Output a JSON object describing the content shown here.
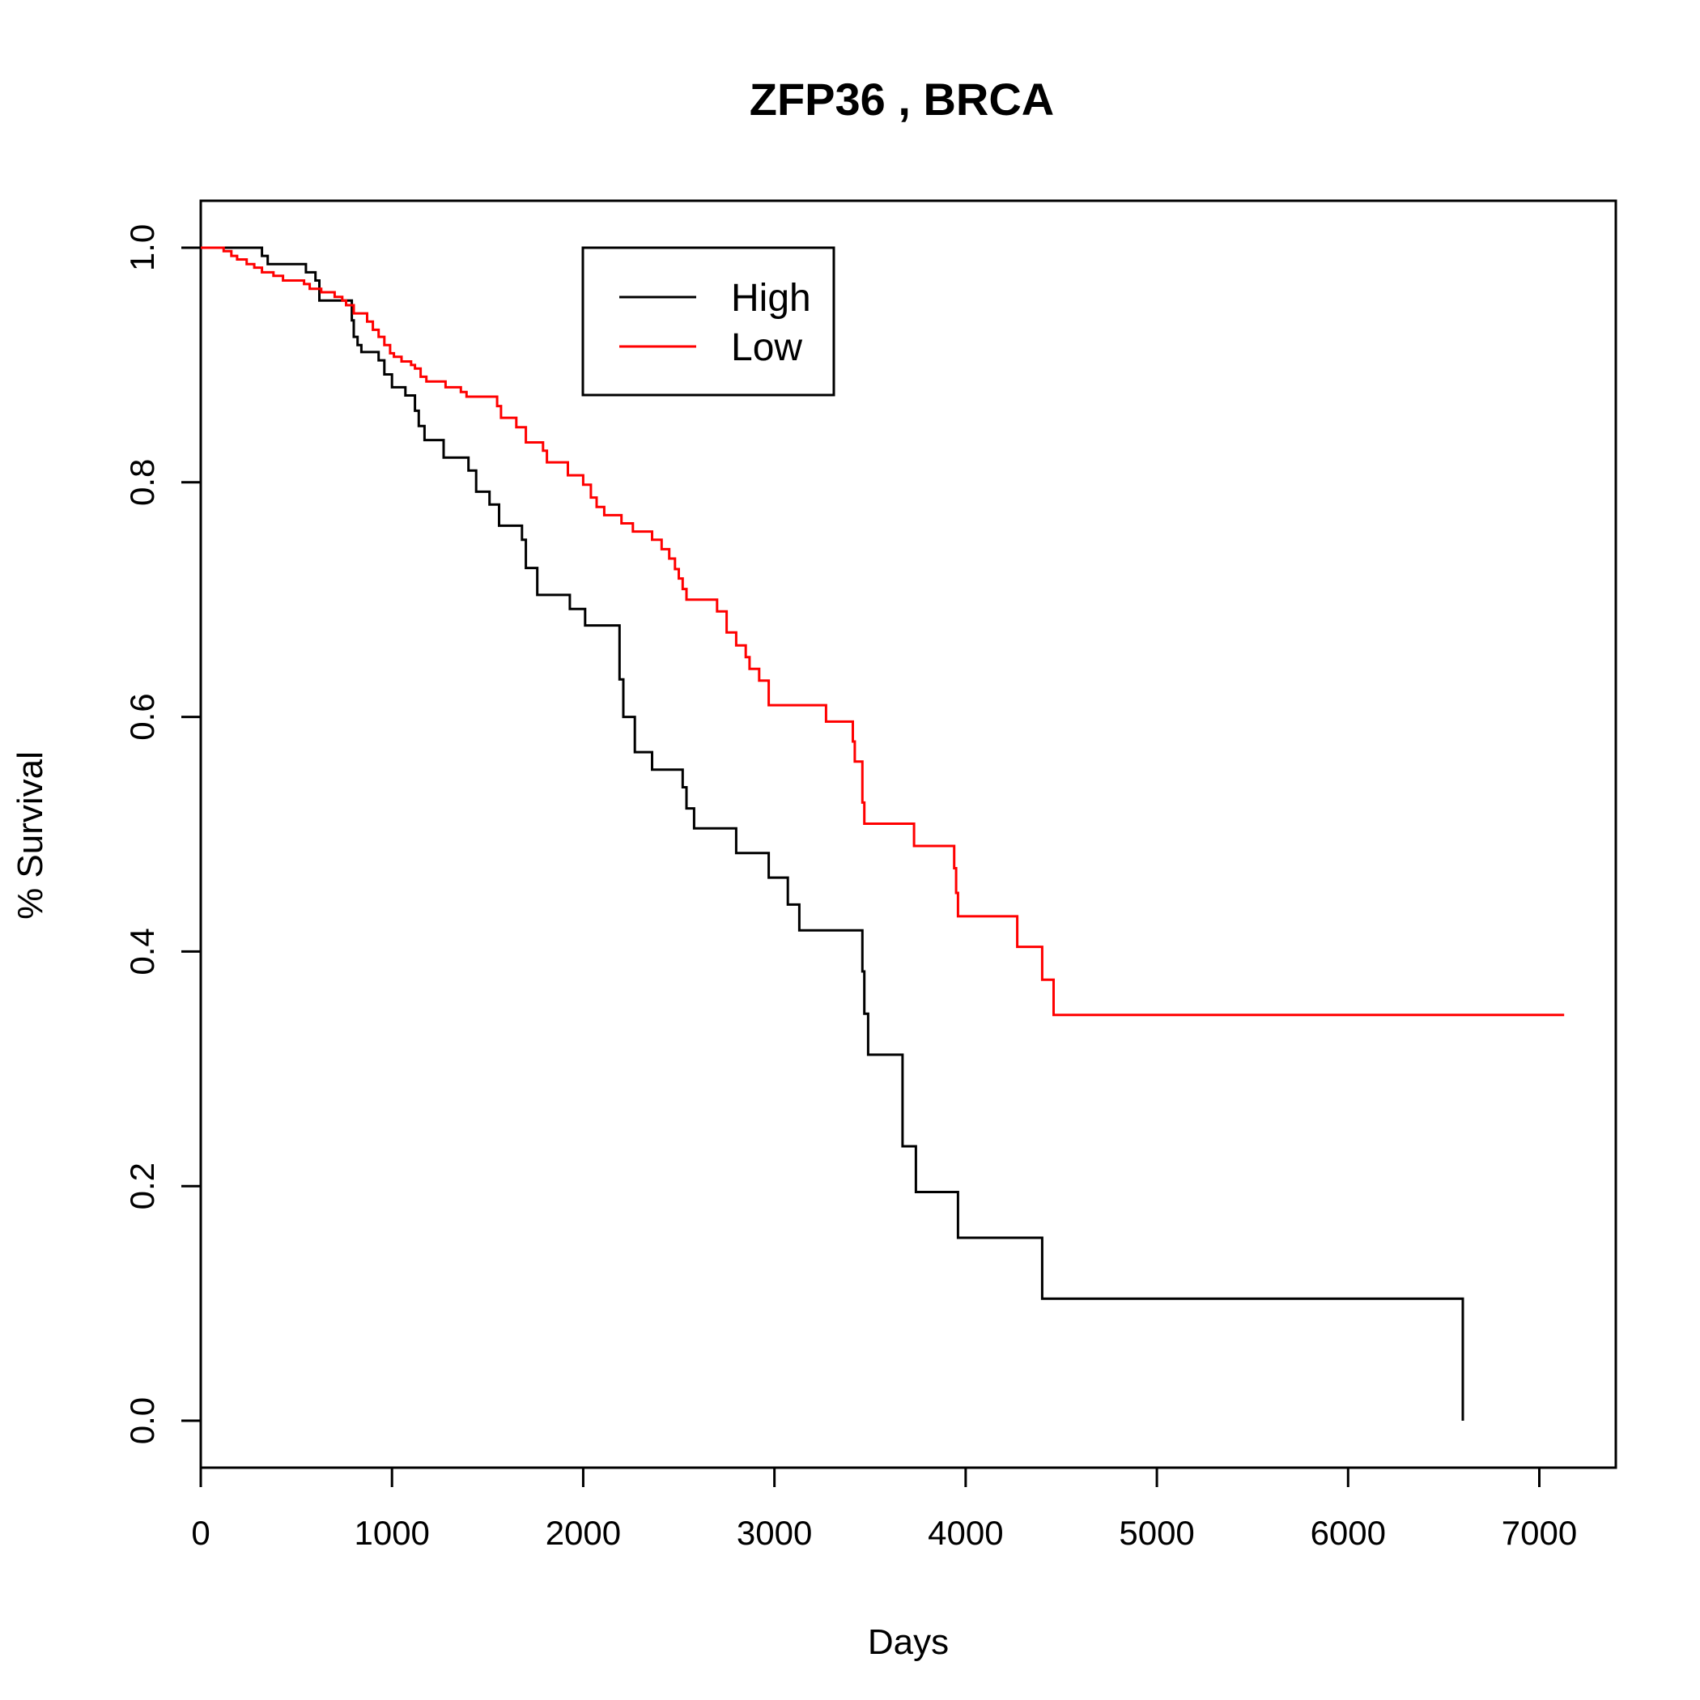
{
  "chart_data": {
    "type": "line",
    "title": "ZFP36 ,  BRCA",
    "xlabel": "Days",
    "ylabel": "% Survival",
    "xlim": [
      0,
      7400
    ],
    "ylim": [
      -0.04,
      1.04
    ],
    "x_ticks": [
      {
        "value": 0,
        "label": "0"
      },
      {
        "value": 1000,
        "label": "1000"
      },
      {
        "value": 2000,
        "label": "2000"
      },
      {
        "value": 3000,
        "label": "3000"
      },
      {
        "value": 4000,
        "label": "4000"
      },
      {
        "value": 5000,
        "label": "5000"
      },
      {
        "value": 6000,
        "label": "6000"
      },
      {
        "value": 7000,
        "label": "7000"
      }
    ],
    "y_ticks": [
      {
        "value": 0.0,
        "label": "0.0"
      },
      {
        "value": 0.2,
        "label": "0.2"
      },
      {
        "value": 0.4,
        "label": "0.4"
      },
      {
        "value": 0.6,
        "label": "0.6"
      },
      {
        "value": 0.8,
        "label": "0.8"
      },
      {
        "value": 1.0,
        "label": "1.0"
      }
    ],
    "grid": false,
    "legend_position": "top-center",
    "series": [
      {
        "name": "High",
        "color": "#000000",
        "step": true,
        "points": [
          [
            0,
            1.0
          ],
          [
            320,
            0.993
          ],
          [
            350,
            0.986
          ],
          [
            550,
            0.979
          ],
          [
            600,
            0.972
          ],
          [
            620,
            0.955
          ],
          [
            790,
            0.938
          ],
          [
            800,
            0.924
          ],
          [
            820,
            0.917
          ],
          [
            840,
            0.911
          ],
          [
            930,
            0.904
          ],
          [
            960,
            0.892
          ],
          [
            1000,
            0.881
          ],
          [
            1070,
            0.874
          ],
          [
            1120,
            0.861
          ],
          [
            1140,
            0.848
          ],
          [
            1170,
            0.836
          ],
          [
            1270,
            0.821
          ],
          [
            1400,
            0.81
          ],
          [
            1440,
            0.792
          ],
          [
            1510,
            0.781
          ],
          [
            1560,
            0.763
          ],
          [
            1680,
            0.751
          ],
          [
            1700,
            0.727
          ],
          [
            1760,
            0.704
          ],
          [
            1930,
            0.692
          ],
          [
            2010,
            0.678
          ],
          [
            2190,
            0.632
          ],
          [
            2210,
            0.6
          ],
          [
            2270,
            0.57
          ],
          [
            2360,
            0.555
          ],
          [
            2520,
            0.54
          ],
          [
            2540,
            0.522
          ],
          [
            2580,
            0.505
          ],
          [
            2800,
            0.484
          ],
          [
            2970,
            0.463
          ],
          [
            3070,
            0.44
          ],
          [
            3130,
            0.418
          ],
          [
            3460,
            0.383
          ],
          [
            3470,
            0.347
          ],
          [
            3490,
            0.312
          ],
          [
            3670,
            0.234
          ],
          [
            3740,
            0.195
          ],
          [
            3960,
            0.156
          ],
          [
            4400,
            0.104
          ],
          [
            6600,
            0.104
          ],
          [
            6600,
            0.0
          ]
        ]
      },
      {
        "name": "Low",
        "color": "#ff0000",
        "step": true,
        "points": [
          [
            0,
            1.0
          ],
          [
            120,
            0.997
          ],
          [
            160,
            0.993
          ],
          [
            190,
            0.99
          ],
          [
            240,
            0.986
          ],
          [
            280,
            0.983
          ],
          [
            320,
            0.979
          ],
          [
            380,
            0.976
          ],
          [
            430,
            0.972
          ],
          [
            540,
            0.969
          ],
          [
            570,
            0.965
          ],
          [
            630,
            0.962
          ],
          [
            700,
            0.958
          ],
          [
            740,
            0.955
          ],
          [
            760,
            0.951
          ],
          [
            800,
            0.944
          ],
          [
            870,
            0.937
          ],
          [
            900,
            0.93
          ],
          [
            930,
            0.924
          ],
          [
            960,
            0.917
          ],
          [
            990,
            0.91
          ],
          [
            1010,
            0.907
          ],
          [
            1050,
            0.903
          ],
          [
            1100,
            0.9
          ],
          [
            1120,
            0.897
          ],
          [
            1150,
            0.89
          ],
          [
            1180,
            0.886
          ],
          [
            1280,
            0.881
          ],
          [
            1360,
            0.877
          ],
          [
            1390,
            0.873
          ],
          [
            1550,
            0.865
          ],
          [
            1570,
            0.855
          ],
          [
            1650,
            0.847
          ],
          [
            1700,
            0.834
          ],
          [
            1790,
            0.827
          ],
          [
            1810,
            0.817
          ],
          [
            1920,
            0.806
          ],
          [
            2000,
            0.798
          ],
          [
            2040,
            0.787
          ],
          [
            2070,
            0.779
          ],
          [
            2110,
            0.772
          ],
          [
            2200,
            0.765
          ],
          [
            2260,
            0.758
          ],
          [
            2360,
            0.751
          ],
          [
            2410,
            0.743
          ],
          [
            2450,
            0.735
          ],
          [
            2480,
            0.726
          ],
          [
            2500,
            0.718
          ],
          [
            2520,
            0.709
          ],
          [
            2540,
            0.7
          ],
          [
            2700,
            0.69
          ],
          [
            2750,
            0.672
          ],
          [
            2800,
            0.661
          ],
          [
            2850,
            0.651
          ],
          [
            2870,
            0.641
          ],
          [
            2920,
            0.631
          ],
          [
            2970,
            0.61
          ],
          [
            3270,
            0.596
          ],
          [
            3410,
            0.579
          ],
          [
            3420,
            0.562
          ],
          [
            3460,
            0.527
          ],
          [
            3470,
            0.509
          ],
          [
            3730,
            0.49
          ],
          [
            3940,
            0.471
          ],
          [
            3950,
            0.45
          ],
          [
            3960,
            0.43
          ],
          [
            4270,
            0.404
          ],
          [
            4400,
            0.376
          ],
          [
            4460,
            0.346
          ],
          [
            7130,
            0.346
          ]
        ]
      }
    ]
  }
}
